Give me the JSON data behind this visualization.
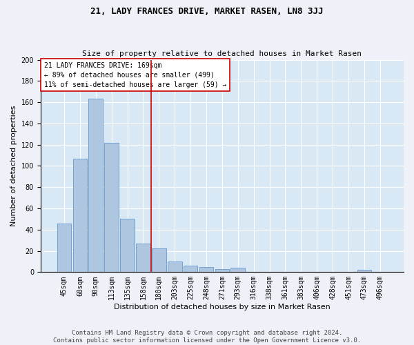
{
  "title": "21, LADY FRANCES DRIVE, MARKET RASEN, LN8 3JJ",
  "subtitle": "Size of property relative to detached houses in Market Rasen",
  "xlabel": "Distribution of detached houses by size in Market Rasen",
  "ylabel": "Number of detached properties",
  "categories": [
    "45sqm",
    "68sqm",
    "90sqm",
    "113sqm",
    "135sqm",
    "158sqm",
    "180sqm",
    "203sqm",
    "225sqm",
    "248sqm",
    "271sqm",
    "293sqm",
    "316sqm",
    "338sqm",
    "361sqm",
    "383sqm",
    "406sqm",
    "428sqm",
    "451sqm",
    "473sqm",
    "496sqm"
  ],
  "values": [
    46,
    107,
    163,
    122,
    50,
    27,
    22,
    10,
    6,
    5,
    3,
    4,
    0,
    0,
    0,
    0,
    0,
    0,
    0,
    2,
    0
  ],
  "bar_color": "#aec6df",
  "bar_edge_color": "#6699cc",
  "vline_x_index": 5.5,
  "vline_color": "#cc0000",
  "annotation_line1": "21 LADY FRANCES DRIVE: 169sqm",
  "annotation_line2": "← 89% of detached houses are smaller (499)",
  "annotation_line3": "11% of semi-detached houses are larger (59) →",
  "annotation_box_color": "#cc0000",
  "ylim": [
    0,
    200
  ],
  "yticks": [
    0,
    20,
    40,
    60,
    80,
    100,
    120,
    140,
    160,
    180,
    200
  ],
  "background_color": "#d9e8f5",
  "grid_color": "#ffffff",
  "footer_line1": "Contains HM Land Registry data © Crown copyright and database right 2024.",
  "footer_line2": "Contains public sector information licensed under the Open Government Licence v3.0.",
  "title_fontsize": 9,
  "subtitle_fontsize": 8,
  "axis_label_fontsize": 8,
  "tick_fontsize": 7,
  "annotation_fontsize": 7,
  "footer_fontsize": 6.5
}
